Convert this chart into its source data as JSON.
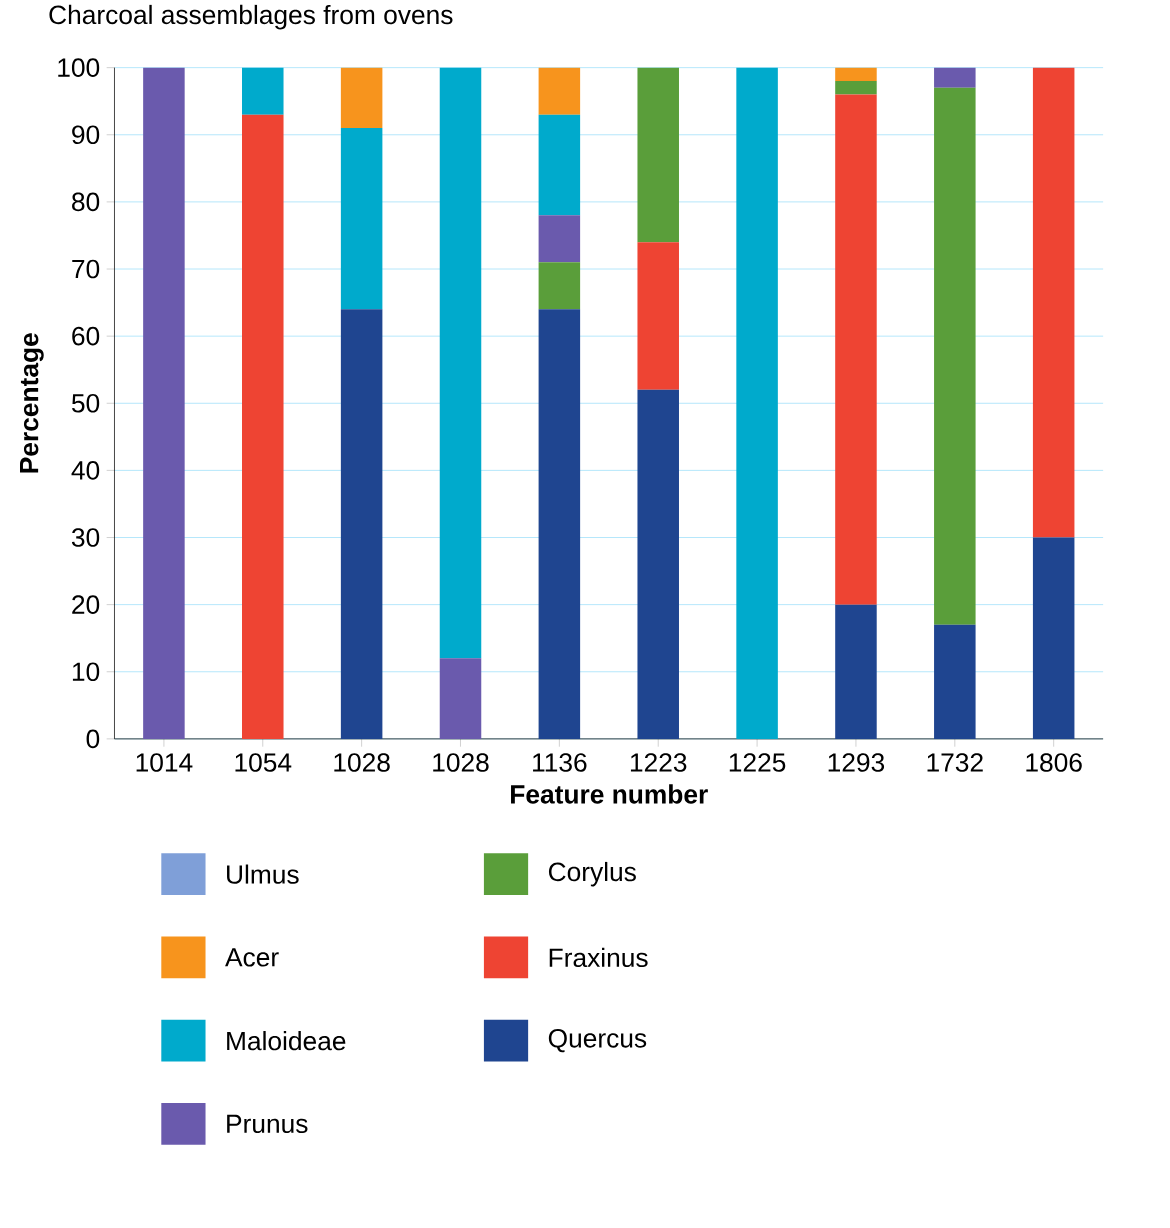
{
  "chart_data": {
    "type": "bar",
    "stacked": true,
    "title": "Charcoal assemblages from ovens",
    "xlabel": "Feature number",
    "ylabel": "Percentage",
    "categories": [
      "1014",
      "1054",
      "1028",
      "1028",
      "1136",
      "1223",
      "1225",
      "1293",
      "1732",
      "1806"
    ],
    "ylim": [
      0,
      100
    ],
    "yticks": [
      0,
      10,
      20,
      30,
      40,
      50,
      60,
      70,
      80,
      90,
      100
    ],
    "grid": "y",
    "legend": "bottom",
    "series": [
      {
        "name": "Quercus",
        "color": "#1f4590",
        "values": [
          0,
          0,
          64,
          0,
          64,
          52,
          0,
          20,
          17,
          30
        ]
      },
      {
        "name": "Fraxinus",
        "color": "#ee4433",
        "values": [
          0,
          93,
          0,
          0,
          0,
          22,
          0,
          76,
          0,
          70
        ]
      },
      {
        "name": "Corylus",
        "color": "#5a9e3a",
        "values": [
          0,
          0,
          0,
          0,
          7,
          26,
          0,
          2,
          80,
          0
        ]
      },
      {
        "name": "Prunus",
        "color": "#6a5aad",
        "values": [
          100,
          0,
          0,
          12,
          7,
          0,
          0,
          0,
          3,
          0
        ]
      },
      {
        "name": "Maloideae",
        "color": "#00aacc",
        "values": [
          0,
          7,
          27,
          88,
          15,
          0,
          100,
          0,
          0,
          0
        ]
      },
      {
        "name": "Acer",
        "color": "#f7941d",
        "values": [
          0,
          0,
          9,
          0,
          7,
          0,
          0,
          2,
          0,
          0
        ]
      },
      {
        "name": "Ulmus",
        "color": "#7f9fd8",
        "values": [
          0,
          0,
          0,
          0,
          0,
          0,
          0,
          0,
          0,
          0
        ]
      }
    ]
  }
}
